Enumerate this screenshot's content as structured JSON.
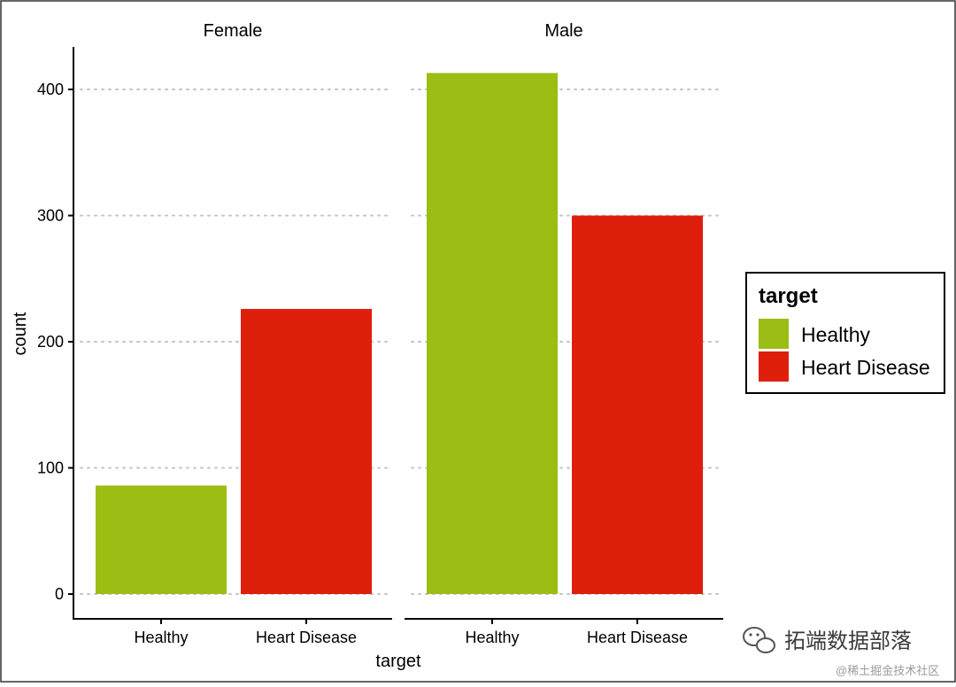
{
  "chart_data": {
    "type": "bar",
    "facet_variable": "sex",
    "facets": [
      "Female",
      "Male"
    ],
    "categories": [
      "Healthy",
      "Heart Disease"
    ],
    "series": [
      {
        "name": "Healthy",
        "values": [
          86,
          413
        ]
      },
      {
        "name": "Heart Disease",
        "values": [
          226,
          300
        ]
      }
    ],
    "title": "",
    "xlabel": "target",
    "ylabel": "count",
    "ylim": [
      0,
      420
    ],
    "yticks": [
      0,
      100,
      200,
      300,
      400
    ],
    "grid": "horizontal dotted",
    "legend": {
      "title": "target",
      "position": "right",
      "entries": [
        "Healthy",
        "Heart Disease"
      ]
    },
    "colors": {
      "Healthy": "#9bbd14",
      "Heart Disease": "#de1f0c"
    }
  },
  "watermark": {
    "main_text": "拓端数据部落",
    "sub_text": "@稀土掘金技术社区"
  }
}
